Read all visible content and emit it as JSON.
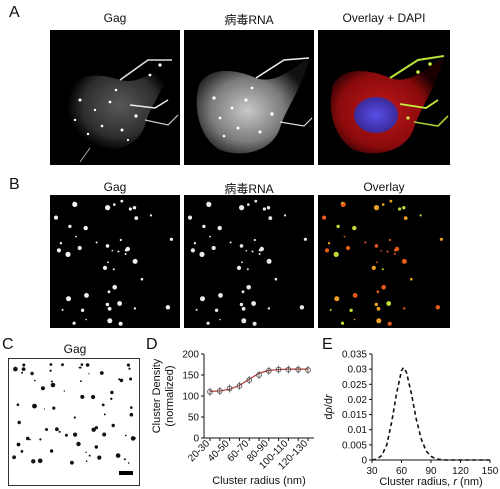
{
  "figure": {
    "panel_a": {
      "letter": "A",
      "titles": [
        "Gag",
        "病毒RNA",
        "Overlay + DAPI"
      ]
    },
    "panel_b": {
      "letter": "B",
      "titles": [
        "Gag",
        "病毒RNA",
        "Overlay"
      ]
    },
    "panel_c": {
      "letter": "C",
      "title": "Gag"
    },
    "panel_d": {
      "letter": "D"
    },
    "panel_e": {
      "letter": "E"
    }
  },
  "chart_data": [
    {
      "type": "line",
      "panel": "D",
      "xlabel": "Cluster radius (nm)",
      "ylabel": "Cluster Density (normalized)",
      "ylabel_lines": [
        "Cluster Density",
        "(normalized)"
      ],
      "categories": [
        "20-30",
        "30-40",
        "40-50",
        "50-60",
        "60-70",
        "70-80",
        "80-90",
        "90-100",
        "100-110",
        "110-120",
        "120-130"
      ],
      "tick_labels": [
        "20-30",
        "40-50",
        "60-70",
        "80-90",
        "100-110",
        "120-130"
      ],
      "yticks": [
        0,
        50,
        100,
        150,
        200
      ],
      "ylim": [
        0,
        200
      ],
      "series": [
        {
          "style": "markers",
          "values": [
            110,
            112,
            118,
            124,
            138,
            150,
            160,
            163,
            163,
            163,
            162
          ]
        },
        {
          "style": "fit-line",
          "color": "#b5332e",
          "values": [
            111,
            112,
            116,
            125,
            140,
            154,
            161,
            163,
            164,
            164,
            164
          ]
        }
      ]
    },
    {
      "type": "line",
      "panel": "E",
      "xlabel": "Cluster radius, r (nm)",
      "xlabel_parts": [
        "Cluster radius, ",
        "r",
        " (nm)"
      ],
      "ylabel": "dρ/dr",
      "ylabel_parts": [
        "d",
        "ρ",
        "/d",
        "r"
      ],
      "xticks": [
        30,
        60,
        90,
        120,
        150
      ],
      "yticks": [
        0,
        0.005,
        0.01,
        0.015,
        0.02,
        0.025,
        0.03,
        0.035
      ],
      "ytick_labels": [
        "0",
        "0.005",
        "0.01",
        "0.015",
        "0.02",
        "0.025",
        "0.03",
        "0.035"
      ],
      "xlim": [
        30,
        150
      ],
      "ylim": [
        0,
        0.035
      ],
      "series": [
        {
          "style": "dashed",
          "x": [
            30,
            35,
            40,
            45,
            50,
            55,
            60,
            62,
            65,
            70,
            75,
            80,
            85,
            90,
            95,
            100,
            105,
            110,
            120,
            130,
            150
          ],
          "values": [
            0,
            0.0003,
            0.0015,
            0.005,
            0.0125,
            0.022,
            0.0295,
            0.0305,
            0.029,
            0.022,
            0.0135,
            0.007,
            0.003,
            0.0012,
            0.0004,
            0.0001,
            0,
            0,
            0,
            0,
            0
          ]
        }
      ]
    }
  ]
}
